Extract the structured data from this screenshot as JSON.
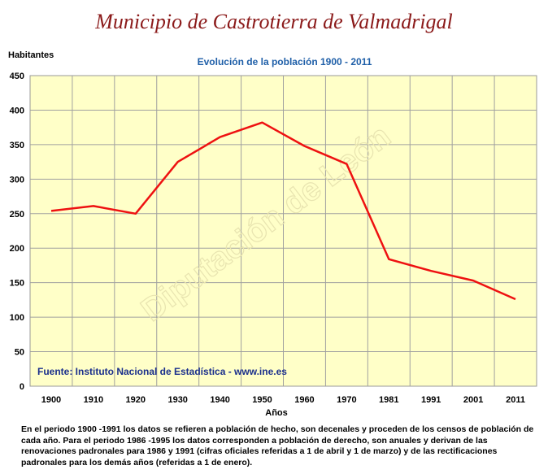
{
  "header": {
    "title": "Municipio de Castrotierra de Valmadrigal"
  },
  "chart_data": {
    "type": "line",
    "title": "Evolución de la población 1900 - 2011",
    "ylabel": "Habitantes",
    "xlabel": "Años",
    "categories": [
      "1900",
      "1910",
      "1920",
      "1930",
      "1940",
      "1950",
      "1960",
      "1970",
      "1981",
      "1991",
      "2001",
      "2011"
    ],
    "series": [
      {
        "values": [
          254,
          261,
          250,
          325,
          361,
          382,
          348,
          322,
          184,
          167,
          153,
          126
        ]
      }
    ],
    "ylim": [
      0,
      450
    ],
    "yticks": [
      "0",
      "50",
      "100",
      "150",
      "200",
      "250",
      "300",
      "350",
      "400",
      "450"
    ],
    "grid": true,
    "line_color": "#ee1111",
    "plot_background": "#ffffc8",
    "source": "Fuente: Instituto Nacional de Estadística - www.ine.es",
    "watermark": "Diputación de León"
  },
  "footnote": "En el periodo 1900 -1991 los datos se refieren a población de hecho, son decenales y proceden de los censos de población de cada año. Para el periodo 1986 -1995 los datos corresponden a población de derecho, son anuales y derivan de las renovaciones padronales para 1986 y 1991 (cifras oficiales referidas a 1 de abril y 1 de marzo) y de las rectificaciones padronales para los demás años (referidas a 1 de enero)."
}
